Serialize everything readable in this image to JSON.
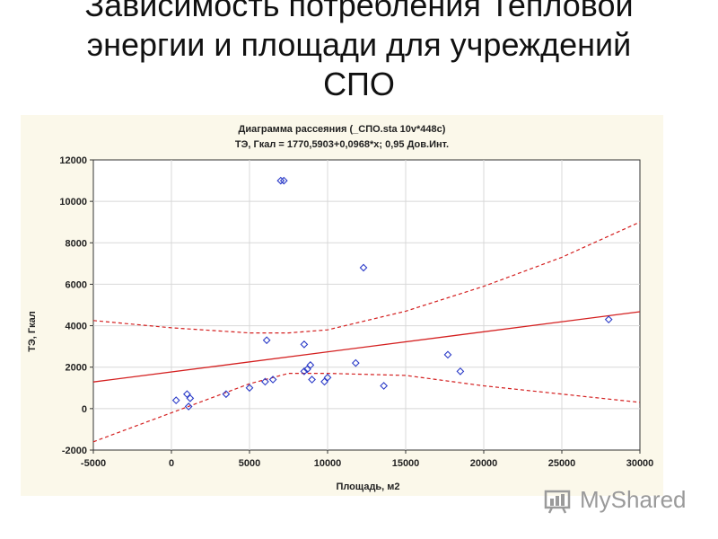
{
  "slide": {
    "title_lines": [
      "Зависимость потребления Тепловой",
      "энергии и площади для учреждений",
      "СПО"
    ]
  },
  "chart_data": {
    "type": "scatter",
    "title": "Диаграмма рассеяния (_СПО.sta 10v*448c)",
    "subtitle": "ТЭ, Гкал = 1770,5903+0,0968*x; 0,95 Дов.Инт.",
    "xlabel": "Площадь, м2",
    "ylabel": "ТЭ, Гкал",
    "xlim": [
      -5000,
      30000
    ],
    "ylim": [
      -2000,
      12000
    ],
    "x_ticks": [
      -5000,
      0,
      5000,
      10000,
      15000,
      20000,
      25000,
      30000
    ],
    "y_ticks": [
      -2000,
      0,
      2000,
      4000,
      6000,
      8000,
      10000,
      12000
    ],
    "grid": true,
    "regression": {
      "intercept": 1770.5903,
      "slope": 0.0968
    },
    "confidence_band": {
      "upper": [
        [
          -5000,
          4250
        ],
        [
          0,
          3900
        ],
        [
          5000,
          3650
        ],
        [
          7500,
          3650
        ],
        [
          10000,
          3800
        ],
        [
          15000,
          4700
        ],
        [
          20000,
          5900
        ],
        [
          25000,
          7300
        ],
        [
          30000,
          9000
        ]
      ],
      "lower": [
        [
          -5000,
          -1600
        ],
        [
          0,
          -200
        ],
        [
          5000,
          1200
        ],
        [
          7500,
          1700
        ],
        [
          10000,
          1700
        ],
        [
          15000,
          1600
        ],
        [
          20000,
          1100
        ],
        [
          25000,
          700
        ],
        [
          30000,
          300
        ]
      ]
    },
    "points": [
      [
        300,
        400
      ],
      [
        1000,
        700
      ],
      [
        1200,
        500
      ],
      [
        1100,
        100
      ],
      [
        3500,
        700
      ],
      [
        5000,
        1000
      ],
      [
        6000,
        1300
      ],
      [
        6500,
        1400
      ],
      [
        6100,
        3300
      ],
      [
        7000,
        11000
      ],
      [
        7200,
        11000
      ],
      [
        8500,
        3100
      ],
      [
        8500,
        1800
      ],
      [
        8700,
        1900
      ],
      [
        8900,
        2100
      ],
      [
        9000,
        1400
      ],
      [
        9800,
        1300
      ],
      [
        10000,
        1500
      ],
      [
        11800,
        2200
      ],
      [
        12300,
        6800
      ],
      [
        13600,
        1100
      ],
      [
        17700,
        2600
      ],
      [
        18500,
        1800
      ],
      [
        28000,
        4300
      ]
    ],
    "colors": {
      "points": "#2c3cc8",
      "line": "#d42020",
      "background": "#fbf8ea"
    }
  },
  "watermark": {
    "text": "MyShared"
  }
}
